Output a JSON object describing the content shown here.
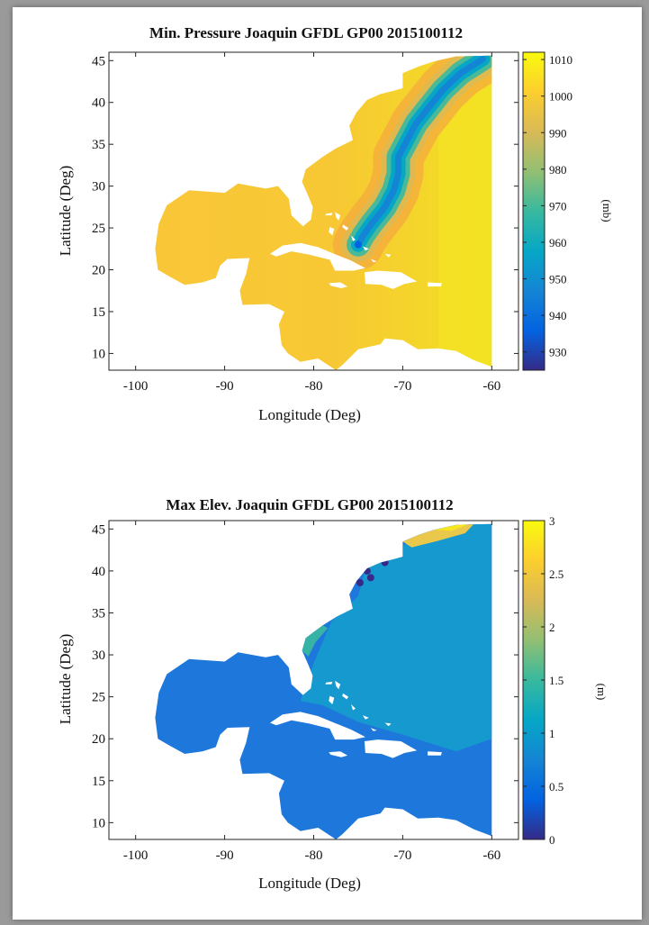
{
  "chart_data": [
    {
      "type": "heatmap",
      "title": "Min. Pressure Joaquin GFDL GP00 2015100112",
      "xlabel": "Longitude (Deg)",
      "ylabel": "Latitude (Deg)",
      "xlim": [
        -103,
        -57
      ],
      "ylim": [
        8,
        46
      ],
      "xticks": [
        -100,
        -90,
        -80,
        -70,
        -60
      ],
      "xtick_labels": [
        "-100",
        "-90",
        "-80",
        "-70",
        "-60"
      ],
      "yticks": [
        10,
        15,
        20,
        25,
        30,
        35,
        40,
        45
      ],
      "ytick_labels": [
        "10",
        "15",
        "20",
        "25",
        "30",
        "35",
        "40",
        "45"
      ],
      "colorbar": {
        "label": "(mb)",
        "range": [
          925,
          1012
        ],
        "ticks": [
          930,
          940,
          950,
          960,
          970,
          980,
          990,
          1000,
          1010
        ],
        "tick_labels": [
          "930",
          "940",
          "950",
          "960",
          "970",
          "980",
          "990",
          "1000",
          "1010"
        ],
        "colormap": "parula"
      },
      "track": {
        "lon": [
          -75,
          -74.5,
          -73.5,
          -72,
          -71,
          -70.5,
          -70.5,
          -69.5,
          -68.5,
          -67,
          -65.5,
          -63.5,
          -61
        ],
        "lat": [
          23,
          24,
          25.5,
          27.5,
          29.5,
          31.5,
          33.5,
          35.5,
          37.5,
          39.5,
          41.5,
          43.5,
          45.2
        ],
        "min_pressure_mb": 945
      }
    },
    {
      "type": "heatmap",
      "title": "Max Elev. Joaquin GFDL GP00 2015100112",
      "xlabel": "Longitude (Deg)",
      "ylabel": "Latitude (Deg)",
      "xlim": [
        -103,
        -57
      ],
      "ylim": [
        8,
        46
      ],
      "xticks": [
        -100,
        -90,
        -80,
        -70,
        -60
      ],
      "xtick_labels": [
        "-100",
        "-90",
        "-80",
        "-70",
        "-60"
      ],
      "yticks": [
        10,
        15,
        20,
        25,
        30,
        35,
        40,
        45
      ],
      "ytick_labels": [
        "10",
        "15",
        "20",
        "25",
        "30",
        "35",
        "40",
        "45"
      ],
      "colorbar": {
        "label": "(m)",
        "range": [
          0,
          3
        ],
        "ticks": [
          0,
          0.5,
          1,
          1.5,
          2,
          2.5,
          3
        ],
        "tick_labels": [
          "0",
          "0.5",
          "1",
          "1.5",
          "2",
          "2.5",
          "3"
        ],
        "colormap": "parula"
      }
    }
  ],
  "colors": {
    "parula": [
      "#352a87",
      "#0363e1",
      "#1485d4",
      "#06a7c6",
      "#38b99e",
      "#92bf73",
      "#d9ba56",
      "#fcce2e",
      "#f9fb0e"
    ],
    "land": "#ffffff",
    "frame": "#9a9a9a"
  }
}
